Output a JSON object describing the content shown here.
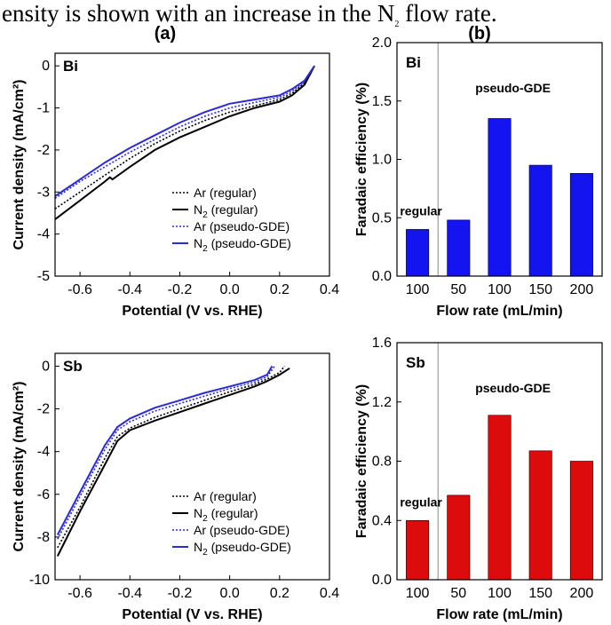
{
  "caption": {
    "prefix": "ensity is shown with an increase in the N",
    "sub": "2",
    "suffix": " flow rate."
  },
  "panel_labels": [
    "(a)",
    "(b)"
  ],
  "chart_data": [
    {
      "type": "line",
      "panel": "(a)",
      "annotation": "Bi",
      "xlabel": "Potential (V vs. RHE)",
      "ylabel": "Current density (mA/cm²)",
      "xlim": [
        -0.7,
        0.4
      ],
      "ylim": [
        -5,
        0.3
      ],
      "xticks": [
        "-0.6",
        "-0.4",
        "-0.2",
        "0.0",
        "0.2",
        "0.4"
      ],
      "yticks": [
        "0",
        "-1",
        "-2",
        "-3",
        "-4",
        "-5"
      ],
      "legend_position": "bottom-right",
      "series": [
        {
          "legend": [
            "Ar (regular)"
          ],
          "color": "#000000",
          "style": "dotted",
          "x": [
            -0.7,
            -0.6,
            -0.5,
            -0.4,
            -0.3,
            -0.2,
            -0.1,
            0.0,
            0.1,
            0.2,
            0.25,
            0.3,
            0.34
          ],
          "y": [
            -3.4,
            -3.0,
            -2.6,
            -2.2,
            -1.85,
            -1.55,
            -1.3,
            -1.1,
            -0.95,
            -0.8,
            -0.65,
            -0.4,
            0.0
          ]
        },
        {
          "legend": [
            "N",
            "2",
            " (regular)"
          ],
          "color": "#000000",
          "style": "solid",
          "x": [
            -0.7,
            -0.6,
            -0.5,
            -0.48,
            -0.47,
            -0.4,
            -0.3,
            -0.2,
            -0.1,
            0.0,
            0.1,
            0.2,
            0.25,
            0.3,
            0.34
          ],
          "y": [
            -3.65,
            -3.2,
            -2.75,
            -2.65,
            -2.7,
            -2.4,
            -2.0,
            -1.7,
            -1.45,
            -1.2,
            -1.0,
            -0.85,
            -0.7,
            -0.45,
            0.0
          ]
        },
        {
          "legend": [
            "Ar (pseudo-GDE)"
          ],
          "color": "#2b2bd9",
          "style": "dotted",
          "x": [
            -0.7,
            -0.6,
            -0.5,
            -0.4,
            -0.3,
            -0.2,
            -0.1,
            0.0,
            0.1,
            0.2,
            0.25,
            0.3,
            0.34
          ],
          "y": [
            -3.15,
            -2.75,
            -2.4,
            -2.05,
            -1.75,
            -1.45,
            -1.2,
            -1.0,
            -0.87,
            -0.75,
            -0.6,
            -0.38,
            0.0
          ]
        },
        {
          "legend": [
            "N",
            "2",
            " (pseudo-GDE)"
          ],
          "color": "#2b2bd9",
          "style": "solid",
          "x": [
            -0.7,
            -0.6,
            -0.5,
            -0.4,
            -0.3,
            -0.2,
            -0.1,
            0.0,
            0.1,
            0.2,
            0.25,
            0.3,
            0.34
          ],
          "y": [
            -3.1,
            -2.7,
            -2.3,
            -1.95,
            -1.65,
            -1.35,
            -1.1,
            -0.9,
            -0.8,
            -0.7,
            -0.55,
            -0.35,
            0.0
          ]
        }
      ]
    },
    {
      "type": "bar",
      "panel": "(b)",
      "annotation": "Bi",
      "xlabel": "Flow rate (mL/min)",
      "ylabel": "Faradaic efficiency (%)",
      "ylim": [
        0,
        2.0
      ],
      "yticks": [
        "0.0",
        "0.5",
        "1.0",
        "1.5",
        "2.0"
      ],
      "categories": [
        "100",
        "50",
        "100",
        "150",
        "200"
      ],
      "groups": [
        "regular",
        "pseudo-GDE"
      ],
      "group_of_bar": [
        0,
        1,
        1,
        1,
        1
      ],
      "values": [
        0.4,
        0.48,
        1.35,
        0.95,
        0.88
      ],
      "color": "#1414f0"
    },
    {
      "type": "line",
      "panel": "(a)",
      "annotation": "Sb",
      "xlabel": "Potential (V vs. RHE)",
      "ylabel": "Current density (mA/cm²)",
      "xlim": [
        -0.7,
        0.4
      ],
      "ylim": [
        -10,
        0.6
      ],
      "xticks": [
        "-0.6",
        "-0.4",
        "-0.2",
        "0.0",
        "0.2",
        "0.4"
      ],
      "yticks": [
        "0",
        "-2",
        "-4",
        "-6",
        "-8",
        "-10"
      ],
      "legend_position": "bottom-right",
      "series": [
        {
          "legend": [
            "Ar (regular)"
          ],
          "color": "#000000",
          "style": "dotted",
          "x": [
            -0.69,
            -0.6,
            -0.5,
            -0.45,
            -0.4,
            -0.3,
            -0.2,
            -0.1,
            0.0,
            0.1,
            0.15,
            0.2,
            0.22
          ],
          "y": [
            -8.5,
            -6.6,
            -4.3,
            -3.3,
            -2.9,
            -2.4,
            -2.0,
            -1.6,
            -1.2,
            -0.85,
            -0.6,
            -0.3,
            0.0
          ]
        },
        {
          "legend": [
            "N",
            "2",
            " (regular)"
          ],
          "color": "#000000",
          "style": "solid",
          "x": [
            -0.69,
            -0.6,
            -0.5,
            -0.45,
            -0.4,
            -0.3,
            -0.2,
            -0.1,
            0.0,
            0.1,
            0.15,
            0.2,
            0.24
          ],
          "y": [
            -8.9,
            -6.8,
            -4.6,
            -3.5,
            -3.0,
            -2.55,
            -2.15,
            -1.75,
            -1.35,
            -0.95,
            -0.7,
            -0.4,
            -0.1
          ]
        },
        {
          "legend": [
            "Ar (pseudo-GDE)"
          ],
          "color": "#2b2bd9",
          "style": "dotted",
          "x": [
            -0.69,
            -0.6,
            -0.5,
            -0.45,
            -0.4,
            -0.3,
            -0.2,
            -0.1,
            0.0,
            0.1,
            0.15,
            0.18
          ],
          "y": [
            -8.1,
            -6.1,
            -3.9,
            -3.0,
            -2.6,
            -2.1,
            -1.75,
            -1.4,
            -1.05,
            -0.75,
            -0.5,
            0.0
          ]
        },
        {
          "legend": [
            "N",
            "2",
            " (pseudo-GDE)"
          ],
          "color": "#2b2bd9",
          "style": "solid",
          "x": [
            -0.69,
            -0.6,
            -0.5,
            -0.45,
            -0.4,
            -0.3,
            -0.2,
            -0.1,
            0.0,
            0.1,
            0.15,
            0.17
          ],
          "y": [
            -7.9,
            -5.9,
            -3.7,
            -2.85,
            -2.45,
            -1.95,
            -1.6,
            -1.25,
            -0.95,
            -0.65,
            -0.4,
            0.0
          ]
        }
      ]
    },
    {
      "type": "bar",
      "panel": "(b)",
      "annotation": "Sb",
      "xlabel": "Flow rate (mL/min)",
      "ylabel": "Faradaic efficiency (%)",
      "ylim": [
        0,
        1.6
      ],
      "yticks": [
        "0.0",
        "0.4",
        "0.8",
        "1.2",
        "1.6"
      ],
      "categories": [
        "100",
        "50",
        "100",
        "150",
        "200"
      ],
      "groups": [
        "regular",
        "pseudo-GDE"
      ],
      "group_of_bar": [
        0,
        1,
        1,
        1,
        1
      ],
      "values": [
        0.4,
        0.57,
        1.11,
        0.87,
        0.8
      ],
      "color": "#dd0c0c"
    }
  ]
}
